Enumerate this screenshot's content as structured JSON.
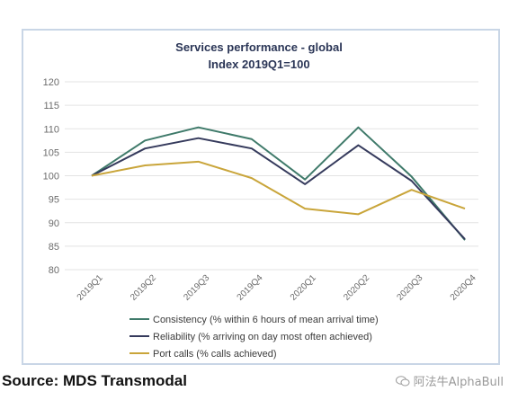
{
  "chart_data": {
    "type": "line",
    "title": "Services performance - global",
    "subtitle": "Index 2019Q1=100",
    "categories": [
      "2019Q1",
      "2019Q2",
      "2019Q3",
      "2019Q4",
      "2020Q1",
      "2020Q2",
      "2020Q3",
      "2020Q4"
    ],
    "ylim": [
      80,
      120
    ],
    "yticks": [
      80,
      85,
      90,
      95,
      100,
      105,
      110,
      115,
      120
    ],
    "grid": true,
    "legend_position": "bottom",
    "series": [
      {
        "name": "Consistency (% within 6 hours of mean arrival time)",
        "color": "#3f7a6a",
        "values": [
          100,
          107.5,
          110.3,
          107.8,
          99.2,
          110.3,
          99.8,
          86.3
        ]
      },
      {
        "name": "Reliability (% arriving on day most often achieved)",
        "color": "#353a5c",
        "values": [
          100,
          105.8,
          108,
          105.8,
          98.2,
          106.5,
          98.9,
          86.5
        ]
      },
      {
        "name": "Port calls (% calls achieved)",
        "color": "#c9a53a",
        "values": [
          100,
          102.2,
          103,
          99.5,
          93,
          91.8,
          97,
          93
        ]
      }
    ]
  },
  "source": "Source: MDS Transmodal",
  "watermark": "阿法牛AlphaBull",
  "watermark_icon": "wechat-icon"
}
